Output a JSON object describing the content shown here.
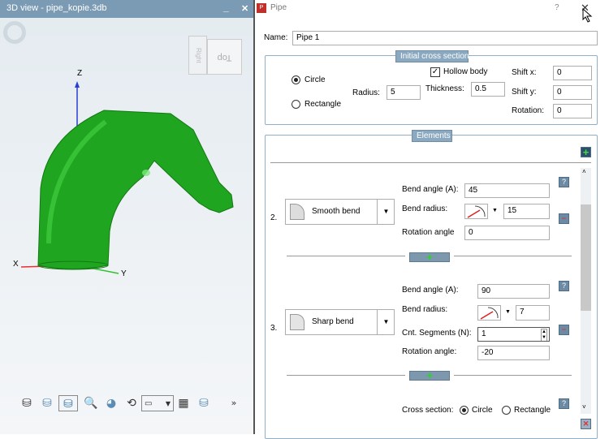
{
  "view3d": {
    "title": "3D view - pipe_kopie.3db",
    "minimize": "_",
    "close": "✕",
    "cube_faces": {
      "right": "Right",
      "top": "Top"
    },
    "axes": {
      "x": "X",
      "y": "Y",
      "z": "Z"
    },
    "pipe_color": "#1fa51f",
    "toolbar": [
      {
        "icon": "wireframe-cylinder-icon"
      },
      {
        "icon": "shaded-cylinder-icon"
      },
      {
        "icon": "shaded-edges-cylinder-icon",
        "selected": true
      },
      {
        "icon": "zoom-fit-icon"
      },
      {
        "icon": "zoom-window-icon"
      },
      {
        "icon": "rotate-icon"
      },
      {
        "icon": "measure-dropdown-icon"
      },
      {
        "icon": "mesh-icon"
      },
      {
        "icon": "dimension-icon"
      }
    ],
    "more": "»"
  },
  "dialog": {
    "title": "Pipe",
    "help": "?",
    "close": "✕",
    "name_label": "Name:",
    "name_value": "Pipe 1",
    "initial": {
      "legend": "Initial cross section",
      "circle": "Circle",
      "rectangle": "Rectangle",
      "selected": "Circle",
      "radius_label": "Radius:",
      "radius": "5",
      "hollow_label": "Hollow body",
      "hollow_checked": true,
      "thickness_label": "Thickness:",
      "thickness": "0.5",
      "shiftx_label": "Shift x:",
      "shiftx": "0",
      "shifty_label": "Shift y:",
      "shifty": "0",
      "rotation_label": "Rotation:",
      "rotation": "0"
    },
    "elements": {
      "legend": "Elements",
      "items": [
        {
          "num": "2.",
          "type": "Smooth bend",
          "bend_angle_label": "Bend angle (A):",
          "bend_angle": "45",
          "bend_radius_label": "Bend radius:",
          "bend_radius": "15",
          "rotation_label": "Rotation angle",
          "rotation": "0"
        },
        {
          "num": "3.",
          "type": "Sharp bend",
          "bend_angle_label": "Bend angle (A):",
          "bend_angle": "90",
          "bend_radius_label": "Bend radius:",
          "bend_radius": "7",
          "segments_label": "Cnt. Segments (N):",
          "segments": "1",
          "rotation_label": "Rotation angle:",
          "rotation": "-20"
        }
      ],
      "cross_section_label": "Cross section:",
      "cs_circle": "Circle",
      "cs_rectangle": "Rectangle",
      "cs_selected": "Circle",
      "add": "+",
      "remove": "−",
      "help": "?",
      "delete": "✕"
    }
  }
}
